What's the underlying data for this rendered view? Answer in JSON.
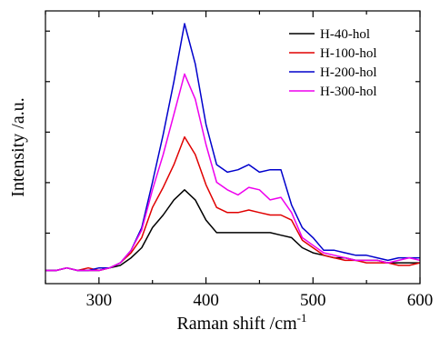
{
  "chart_data": {
    "type": "line",
    "xlabel": "Raman shift /cm",
    "xlabel_superscript": "-1",
    "ylabel": "Intensity /a.u.",
    "xlim": [
      250,
      600
    ],
    "ylim": [
      0,
      1
    ],
    "x_ticks": [
      300,
      400,
      500,
      600
    ],
    "y_tick_labels": "none",
    "legend_position": "top-right",
    "series": [
      {
        "name": "H-40-hol",
        "color": "#000000",
        "x": [
          250,
          260,
          270,
          280,
          290,
          300,
          310,
          320,
          330,
          340,
          350,
          360,
          370,
          380,
          390,
          400,
          410,
          420,
          430,
          440,
          450,
          460,
          470,
          480,
          490,
          500,
          510,
          520,
          530,
          540,
          550,
          560,
          570,
          580,
          590,
          600
        ],
        "y": [
          0.02,
          0.02,
          0.03,
          0.02,
          0.02,
          0.02,
          0.03,
          0.04,
          0.07,
          0.11,
          0.19,
          0.24,
          0.3,
          0.34,
          0.3,
          0.22,
          0.17,
          0.17,
          0.17,
          0.17,
          0.17,
          0.17,
          0.16,
          0.15,
          0.11,
          0.09,
          0.08,
          0.07,
          0.07,
          0.06,
          0.06,
          0.06,
          0.05,
          0.05,
          0.05,
          0.05
        ]
      },
      {
        "name": "H-100-hol",
        "color": "#e00000",
        "x": [
          250,
          260,
          270,
          280,
          290,
          300,
          310,
          320,
          330,
          340,
          350,
          360,
          370,
          380,
          390,
          400,
          410,
          420,
          430,
          440,
          450,
          460,
          470,
          480,
          490,
          500,
          510,
          520,
          530,
          540,
          550,
          560,
          570,
          580,
          590,
          600
        ],
        "y": [
          0.02,
          0.02,
          0.03,
          0.02,
          0.03,
          0.02,
          0.03,
          0.05,
          0.09,
          0.15,
          0.27,
          0.35,
          0.44,
          0.55,
          0.48,
          0.36,
          0.27,
          0.25,
          0.25,
          0.26,
          0.25,
          0.24,
          0.24,
          0.22,
          0.14,
          0.11,
          0.08,
          0.07,
          0.06,
          0.06,
          0.05,
          0.05,
          0.05,
          0.04,
          0.04,
          0.05
        ]
      },
      {
        "name": "H-200-hol",
        "color": "#0000cc",
        "x": [
          250,
          260,
          270,
          280,
          290,
          300,
          310,
          320,
          330,
          340,
          350,
          360,
          370,
          380,
          390,
          400,
          410,
          420,
          430,
          440,
          450,
          460,
          470,
          480,
          490,
          500,
          510,
          520,
          530,
          540,
          550,
          560,
          570,
          580,
          590,
          600
        ],
        "y": [
          0.02,
          0.02,
          0.03,
          0.02,
          0.02,
          0.03,
          0.03,
          0.05,
          0.1,
          0.19,
          0.37,
          0.56,
          0.77,
          1.0,
          0.84,
          0.6,
          0.44,
          0.41,
          0.42,
          0.44,
          0.41,
          0.42,
          0.42,
          0.28,
          0.19,
          0.15,
          0.1,
          0.1,
          0.09,
          0.08,
          0.08,
          0.07,
          0.06,
          0.07,
          0.07,
          0.07
        ]
      },
      {
        "name": "H-300-hol",
        "color": "#ee00ee",
        "x": [
          250,
          260,
          270,
          280,
          290,
          300,
          310,
          320,
          330,
          340,
          350,
          360,
          370,
          380,
          390,
          400,
          410,
          420,
          430,
          440,
          450,
          460,
          470,
          480,
          490,
          500,
          510,
          520,
          530,
          540,
          550,
          560,
          570,
          580,
          590,
          600
        ],
        "y": [
          0.02,
          0.02,
          0.03,
          0.02,
          0.02,
          0.02,
          0.03,
          0.05,
          0.1,
          0.18,
          0.34,
          0.48,
          0.64,
          0.8,
          0.7,
          0.52,
          0.37,
          0.34,
          0.32,
          0.35,
          0.34,
          0.3,
          0.31,
          0.25,
          0.15,
          0.12,
          0.09,
          0.08,
          0.07,
          0.06,
          0.06,
          0.06,
          0.05,
          0.06,
          0.07,
          0.06
        ]
      }
    ]
  }
}
